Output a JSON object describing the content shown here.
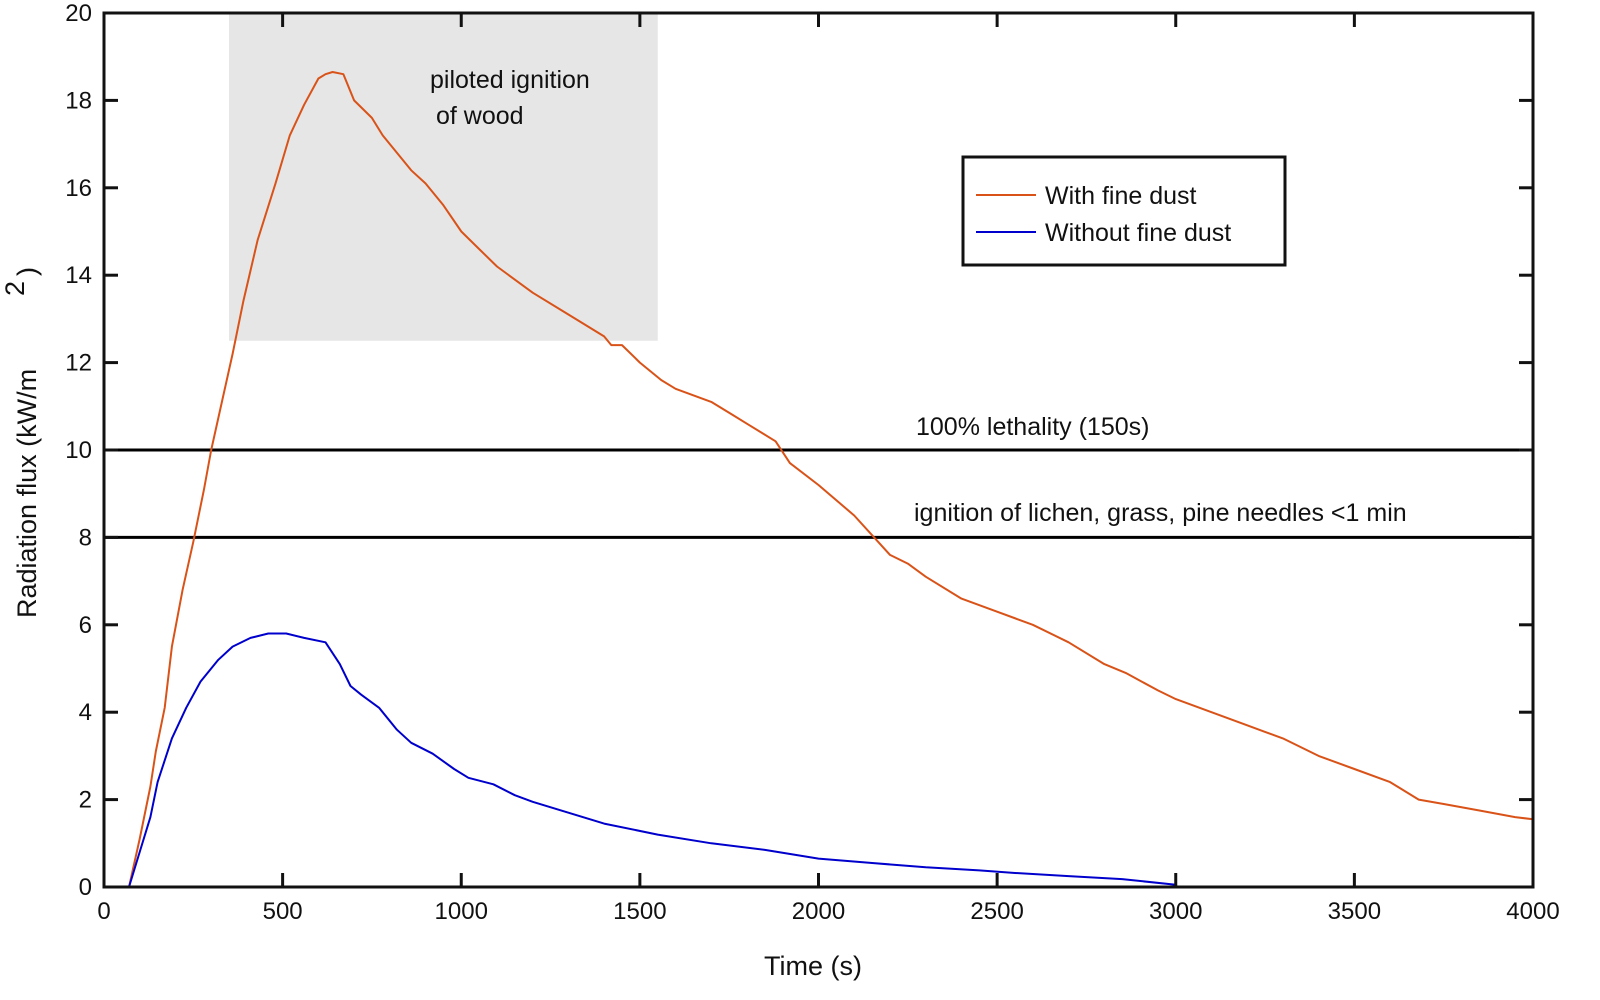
{
  "chart_data": {
    "type": "line",
    "title": "",
    "xlabel": "Time (s)",
    "ylabel": "Radiation flux (kW/m",
    "ylabel_sup": "2",
    "ylabel_close": ")",
    "xlim": [
      0,
      4000
    ],
    "ylim": [
      0,
      20
    ],
    "xticks": [
      0,
      500,
      1000,
      1500,
      2000,
      2500,
      3000,
      3500,
      4000
    ],
    "yticks": [
      0,
      2,
      4,
      6,
      8,
      10,
      12,
      14,
      16,
      18,
      20
    ],
    "grid": false,
    "legend_position": "top-right",
    "series": [
      {
        "name": "With fine dust",
        "color": "#d95319",
        "x": [
          70,
          100,
          130,
          145,
          170,
          190,
          220,
          250,
          280,
          300,
          330,
          360,
          390,
          430,
          480,
          520,
          560,
          600,
          620,
          640,
          670,
          700,
          750,
          780,
          820,
          860,
          900,
          950,
          1000,
          1050,
          1100,
          1200,
          1300,
          1400,
          1420,
          1450,
          1500,
          1560,
          1600,
          1700,
          1760,
          1800,
          1880,
          1920,
          2000,
          2100,
          2200,
          2250,
          2300,
          2400,
          2500,
          2600,
          2700,
          2800,
          2860,
          2950,
          3000,
          3100,
          3200,
          3250,
          3300,
          3400,
          3500,
          3600,
          3680,
          3750,
          3850,
          3950,
          4000
        ],
        "y": [
          0,
          1.1,
          2.3,
          3.1,
          4.1,
          5.5,
          6.8,
          7.9,
          9.1,
          10.0,
          11.1,
          12.2,
          13.4,
          14.8,
          16.1,
          17.2,
          17.9,
          18.5,
          18.6,
          18.65,
          18.6,
          18.0,
          17.6,
          17.2,
          16.8,
          16.4,
          16.1,
          15.6,
          15.0,
          14.6,
          14.2,
          13.6,
          13.1,
          12.6,
          12.4,
          12.4,
          12.0,
          11.6,
          11.4,
          11.1,
          10.8,
          10.6,
          10.2,
          9.7,
          9.2,
          8.5,
          7.6,
          7.4,
          7.1,
          6.6,
          6.3,
          6.0,
          5.6,
          5.1,
          4.9,
          4.5,
          4.3,
          4.0,
          3.7,
          3.55,
          3.4,
          3.0,
          2.7,
          2.4,
          2.0,
          1.9,
          1.75,
          1.6,
          1.55
        ]
      },
      {
        "name": "Without fine dust",
        "color": "#0000cc",
        "x": [
          70,
          100,
          130,
          150,
          190,
          230,
          270,
          320,
          360,
          410,
          460,
          510,
          560,
          620,
          660,
          690,
          720,
          770,
          820,
          860,
          920,
          980,
          1020,
          1090,
          1150,
          1200,
          1300,
          1400,
          1550,
          1700,
          1850,
          2000,
          2150,
          2300,
          2450,
          2550,
          2700,
          2850,
          3000
        ],
        "y": [
          0,
          0.8,
          1.6,
          2.4,
          3.4,
          4.1,
          4.7,
          5.2,
          5.5,
          5.7,
          5.8,
          5.8,
          5.7,
          5.6,
          5.1,
          4.6,
          4.4,
          4.1,
          3.6,
          3.3,
          3.05,
          2.7,
          2.5,
          2.35,
          2.1,
          1.95,
          1.7,
          1.45,
          1.2,
          1.0,
          0.85,
          0.65,
          0.55,
          0.45,
          0.38,
          0.32,
          0.25,
          0.18,
          0.05
        ]
      }
    ],
    "reference_lines": [
      {
        "y": 10,
        "label": "100% lethality (150s)"
      },
      {
        "y": 8,
        "label": "ignition of lichen, grass, pine needles <1 min"
      }
    ],
    "shaded_region": {
      "x": [
        350,
        1550
      ],
      "y": [
        12.5,
        20
      ],
      "label_line1": "piloted ignition",
      "label_line2": "of wood",
      "color": "#e6e6e6"
    }
  }
}
